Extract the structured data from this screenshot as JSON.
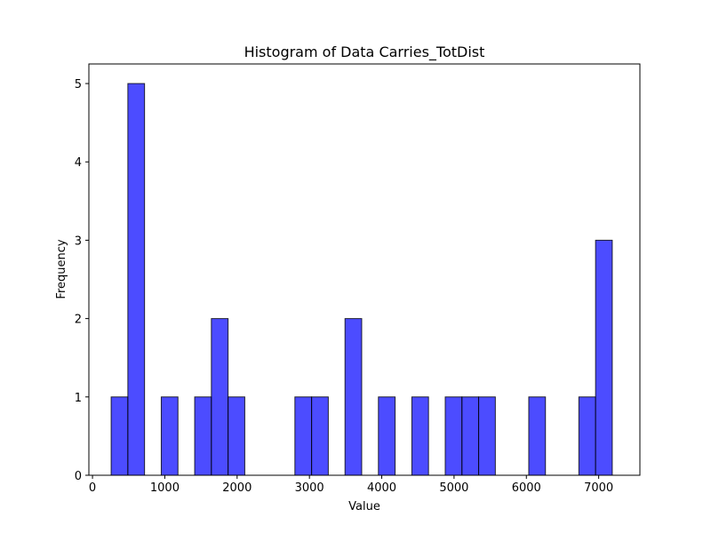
{
  "chart_data": {
    "type": "bar",
    "title": "Histogram of Data Carries_TotDist",
    "xlabel": "Value",
    "ylabel": "Frequency",
    "xlim": [
      -50,
      7570
    ],
    "ylim": [
      0,
      5.25
    ],
    "xticks": [
      0,
      1000,
      2000,
      3000,
      4000,
      5000,
      6000,
      7000
    ],
    "yticks": [
      0,
      1,
      2,
      3,
      4,
      5
    ],
    "grid": false,
    "bar_color": "#0000ff",
    "bar_opacity": 0.7,
    "edge_color": "#000000",
    "bins": [
      {
        "start": 258,
        "end": 489,
        "count": 1
      },
      {
        "start": 489,
        "end": 720,
        "count": 5
      },
      {
        "start": 951,
        "end": 1182,
        "count": 1
      },
      {
        "start": 1413,
        "end": 1644,
        "count": 1
      },
      {
        "start": 1644,
        "end": 1875,
        "count": 2
      },
      {
        "start": 1875,
        "end": 2106,
        "count": 1
      },
      {
        "start": 2799,
        "end": 3030,
        "count": 1
      },
      {
        "start": 3030,
        "end": 3261,
        "count": 1
      },
      {
        "start": 3492,
        "end": 3723,
        "count": 2
      },
      {
        "start": 3954,
        "end": 4185,
        "count": 1
      },
      {
        "start": 4416,
        "end": 4647,
        "count": 1
      },
      {
        "start": 4878,
        "end": 5109,
        "count": 1
      },
      {
        "start": 5109,
        "end": 5340,
        "count": 1
      },
      {
        "start": 5340,
        "end": 5571,
        "count": 1
      },
      {
        "start": 6033,
        "end": 6264,
        "count": 1
      },
      {
        "start": 6726,
        "end": 6957,
        "count": 1
      },
      {
        "start": 6957,
        "end": 7188,
        "count": 3
      }
    ]
  }
}
